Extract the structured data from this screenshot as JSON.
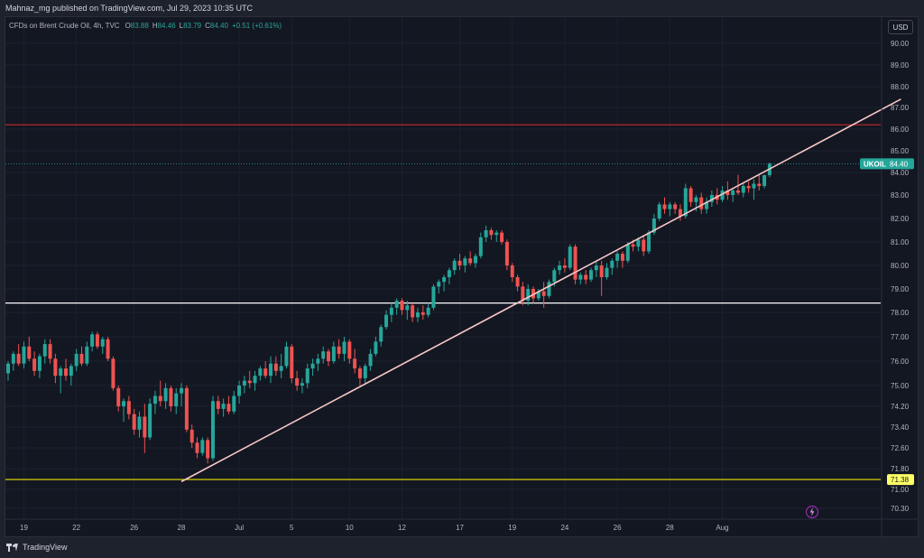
{
  "header": {
    "published": "Mahnaz_mg published on TradingView.com, Jul 29, 2023 10:35 UTC"
  },
  "legend": {
    "symbol": "CFDs on Brent Crude Oil, 4h, TVC",
    "o_label": "O",
    "o_value": "83.88",
    "h_label": "H",
    "h_value": "84.46",
    "l_label": "L",
    "l_value": "83.79",
    "c_label": "C",
    "c_value": "84.40",
    "change": "+0.51 (+0.61%)"
  },
  "currency_button": "USD",
  "ticker_badge": {
    "name": "UKOIL",
    "price": "84.40"
  },
  "support_badge": "71.38",
  "footer": {
    "brand": "TradingView"
  },
  "colors": {
    "up": "#26a69a",
    "down": "#ef5350",
    "background": "#131722",
    "resistance": "#c62828",
    "support": "#ffffff",
    "low_line": "#e6e600",
    "trendline": "#f8c8c8"
  },
  "chart_data": {
    "type": "candlestick",
    "symbol": "UKOIL",
    "interval": "4h",
    "y_ticks": [
      "90.00",
      "89.00",
      "88.00",
      "87.00",
      "86.00",
      "85.00",
      "84.00",
      "83.00",
      "82.00",
      "81.00",
      "80.00",
      "79.00",
      "78.00",
      "77.00",
      "76.00",
      "75.00",
      "74.20",
      "73.40",
      "72.60",
      "71.80",
      "71.00",
      "70.30"
    ],
    "y_tick_values": [
      90.0,
      89.0,
      88.0,
      87.0,
      86.0,
      85.0,
      84.0,
      83.0,
      82.0,
      81.0,
      80.0,
      79.0,
      78.0,
      77.0,
      76.0,
      75.0,
      74.2,
      73.4,
      72.6,
      71.8,
      71.0,
      70.3
    ],
    "x_ticks": [
      "19",
      "22",
      "26",
      "28",
      "Jul",
      "5",
      "10",
      "12",
      "17",
      "19",
      "24",
      "26",
      "28",
      "Aug"
    ],
    "x_tick_index": [
      3,
      13,
      24,
      33,
      44,
      54,
      65,
      75,
      86,
      96,
      106,
      116,
      126,
      136
    ],
    "last_price": 84.4,
    "horizontal_lines": [
      {
        "name": "resistance",
        "price": 86.2,
        "color": "#c62828"
      },
      {
        "name": "support",
        "price": 78.4,
        "color": "#ffffff"
      },
      {
        "name": "low",
        "price": 71.38,
        "color": "#e6e600"
      }
    ],
    "trendline": {
      "start": {
        "index": 33,
        "price": 71.3
      },
      "end": {
        "index": 170,
        "price": 87.4
      }
    },
    "candles": [
      {
        "o": 75.5,
        "h": 76.0,
        "l": 75.2,
        "c": 75.9
      },
      {
        "o": 75.9,
        "h": 76.4,
        "l": 75.6,
        "c": 76.3
      },
      {
        "o": 76.3,
        "h": 76.7,
        "l": 75.8,
        "c": 75.9
      },
      {
        "o": 75.9,
        "h": 76.8,
        "l": 75.7,
        "c": 76.6
      },
      {
        "o": 76.6,
        "h": 77.0,
        "l": 76.0,
        "c": 76.1
      },
      {
        "o": 76.1,
        "h": 76.4,
        "l": 75.4,
        "c": 75.6
      },
      {
        "o": 75.6,
        "h": 76.3,
        "l": 75.3,
        "c": 76.2
      },
      {
        "o": 76.2,
        "h": 76.9,
        "l": 75.9,
        "c": 76.7
      },
      {
        "o": 76.7,
        "h": 76.9,
        "l": 75.9,
        "c": 76.1
      },
      {
        "o": 76.1,
        "h": 76.3,
        "l": 75.1,
        "c": 75.4
      },
      {
        "o": 75.4,
        "h": 75.8,
        "l": 74.7,
        "c": 75.7
      },
      {
        "o": 75.7,
        "h": 76.1,
        "l": 75.2,
        "c": 75.4
      },
      {
        "o": 75.4,
        "h": 75.9,
        "l": 75.0,
        "c": 75.8
      },
      {
        "o": 75.8,
        "h": 76.5,
        "l": 75.6,
        "c": 76.3
      },
      {
        "o": 76.3,
        "h": 76.6,
        "l": 75.8,
        "c": 75.9
      },
      {
        "o": 75.9,
        "h": 76.8,
        "l": 75.8,
        "c": 76.6
      },
      {
        "o": 76.6,
        "h": 77.2,
        "l": 76.4,
        "c": 77.1
      },
      {
        "o": 77.1,
        "h": 77.2,
        "l": 76.5,
        "c": 76.6
      },
      {
        "o": 76.6,
        "h": 77.0,
        "l": 76.3,
        "c": 76.9
      },
      {
        "o": 76.9,
        "h": 77.0,
        "l": 76.0,
        "c": 76.1
      },
      {
        "o": 76.1,
        "h": 76.2,
        "l": 74.8,
        "c": 74.9
      },
      {
        "o": 74.9,
        "h": 75.0,
        "l": 74.0,
        "c": 74.2
      },
      {
        "o": 74.2,
        "h": 74.5,
        "l": 73.6,
        "c": 74.4
      },
      {
        "o": 74.4,
        "h": 74.6,
        "l": 73.7,
        "c": 73.9
      },
      {
        "o": 73.9,
        "h": 74.1,
        "l": 73.1,
        "c": 73.3
      },
      {
        "o": 73.3,
        "h": 74.0,
        "l": 73.0,
        "c": 73.8
      },
      {
        "o": 73.8,
        "h": 74.3,
        "l": 72.4,
        "c": 73.0
      },
      {
        "o": 73.0,
        "h": 74.5,
        "l": 72.9,
        "c": 74.3
      },
      {
        "o": 74.3,
        "h": 74.8,
        "l": 73.9,
        "c": 74.6
      },
      {
        "o": 74.6,
        "h": 75.2,
        "l": 74.2,
        "c": 74.4
      },
      {
        "o": 74.4,
        "h": 75.1,
        "l": 74.1,
        "c": 74.9
      },
      {
        "o": 74.9,
        "h": 75.0,
        "l": 74.0,
        "c": 74.2
      },
      {
        "o": 74.2,
        "h": 74.9,
        "l": 73.9,
        "c": 74.7
      },
      {
        "o": 74.7,
        "h": 75.1,
        "l": 74.2,
        "c": 74.9
      },
      {
        "o": 74.9,
        "h": 75.0,
        "l": 73.2,
        "c": 73.3
      },
      {
        "o": 73.3,
        "h": 73.5,
        "l": 72.6,
        "c": 72.8
      },
      {
        "o": 72.8,
        "h": 73.0,
        "l": 72.2,
        "c": 72.4
      },
      {
        "o": 72.4,
        "h": 73.0,
        "l": 72.3,
        "c": 72.9
      },
      {
        "o": 72.9,
        "h": 73.0,
        "l": 72.0,
        "c": 72.2
      },
      {
        "o": 72.2,
        "h": 74.6,
        "l": 72.1,
        "c": 74.4
      },
      {
        "o": 74.4,
        "h": 74.6,
        "l": 73.9,
        "c": 74.1
      },
      {
        "o": 74.1,
        "h": 74.5,
        "l": 73.8,
        "c": 74.3
      },
      {
        "o": 74.3,
        "h": 74.6,
        "l": 73.9,
        "c": 74.0
      },
      {
        "o": 74.0,
        "h": 74.8,
        "l": 73.9,
        "c": 74.6
      },
      {
        "o": 74.6,
        "h": 75.2,
        "l": 74.3,
        "c": 75.0
      },
      {
        "o": 75.0,
        "h": 75.4,
        "l": 74.7,
        "c": 75.2
      },
      {
        "o": 75.2,
        "h": 75.6,
        "l": 74.9,
        "c": 75.1
      },
      {
        "o": 75.1,
        "h": 75.6,
        "l": 74.8,
        "c": 75.4
      },
      {
        "o": 75.4,
        "h": 75.8,
        "l": 75.2,
        "c": 75.7
      },
      {
        "o": 75.7,
        "h": 76.0,
        "l": 75.3,
        "c": 75.4
      },
      {
        "o": 75.4,
        "h": 76.2,
        "l": 75.1,
        "c": 75.9
      },
      {
        "o": 75.9,
        "h": 76.2,
        "l": 75.4,
        "c": 75.6
      },
      {
        "o": 75.6,
        "h": 76.3,
        "l": 75.3,
        "c": 75.8
      },
      {
        "o": 75.8,
        "h": 76.8,
        "l": 75.7,
        "c": 76.6
      },
      {
        "o": 76.6,
        "h": 76.7,
        "l": 75.1,
        "c": 75.3
      },
      {
        "o": 75.3,
        "h": 75.6,
        "l": 74.8,
        "c": 75.0
      },
      {
        "o": 75.0,
        "h": 75.3,
        "l": 74.7,
        "c": 75.1
      },
      {
        "o": 75.1,
        "h": 75.9,
        "l": 74.9,
        "c": 75.7
      },
      {
        "o": 75.7,
        "h": 76.1,
        "l": 75.4,
        "c": 75.9
      },
      {
        "o": 75.9,
        "h": 76.3,
        "l": 75.6,
        "c": 76.1
      },
      {
        "o": 76.1,
        "h": 76.6,
        "l": 75.9,
        "c": 76.4
      },
      {
        "o": 76.4,
        "h": 76.5,
        "l": 75.8,
        "c": 76.0
      },
      {
        "o": 76.0,
        "h": 76.8,
        "l": 75.9,
        "c": 76.6
      },
      {
        "o": 76.6,
        "h": 76.9,
        "l": 76.1,
        "c": 76.3
      },
      {
        "o": 76.3,
        "h": 77.0,
        "l": 76.0,
        "c": 76.8
      },
      {
        "o": 76.8,
        "h": 76.9,
        "l": 75.9,
        "c": 76.1
      },
      {
        "o": 76.1,
        "h": 76.5,
        "l": 75.5,
        "c": 75.7
      },
      {
        "o": 75.7,
        "h": 75.8,
        "l": 75.0,
        "c": 75.3
      },
      {
        "o": 75.3,
        "h": 75.9,
        "l": 75.1,
        "c": 75.8
      },
      {
        "o": 75.8,
        "h": 76.5,
        "l": 75.6,
        "c": 76.3
      },
      {
        "o": 76.3,
        "h": 77.0,
        "l": 76.2,
        "c": 76.8
      },
      {
        "o": 76.8,
        "h": 77.5,
        "l": 76.6,
        "c": 77.4
      },
      {
        "o": 77.4,
        "h": 78.1,
        "l": 77.3,
        "c": 77.9
      },
      {
        "o": 77.9,
        "h": 78.4,
        "l": 77.6,
        "c": 78.2
      },
      {
        "o": 78.2,
        "h": 78.6,
        "l": 77.9,
        "c": 78.5
      },
      {
        "o": 78.5,
        "h": 78.6,
        "l": 77.9,
        "c": 78.1
      },
      {
        "o": 78.1,
        "h": 78.5,
        "l": 77.7,
        "c": 78.3
      },
      {
        "o": 78.3,
        "h": 78.4,
        "l": 77.6,
        "c": 77.8
      },
      {
        "o": 77.8,
        "h": 78.2,
        "l": 77.6,
        "c": 78.0
      },
      {
        "o": 78.0,
        "h": 78.3,
        "l": 77.7,
        "c": 77.9
      },
      {
        "o": 77.9,
        "h": 78.4,
        "l": 77.8,
        "c": 78.2
      },
      {
        "o": 78.2,
        "h": 79.2,
        "l": 78.1,
        "c": 79.1
      },
      {
        "o": 79.1,
        "h": 79.4,
        "l": 78.8,
        "c": 79.3
      },
      {
        "o": 79.3,
        "h": 79.6,
        "l": 78.9,
        "c": 79.5
      },
      {
        "o": 79.5,
        "h": 79.9,
        "l": 79.2,
        "c": 79.8
      },
      {
        "o": 79.8,
        "h": 80.3,
        "l": 79.6,
        "c": 80.2
      },
      {
        "o": 80.2,
        "h": 80.5,
        "l": 79.8,
        "c": 80.0
      },
      {
        "o": 80.0,
        "h": 80.4,
        "l": 79.7,
        "c": 80.3
      },
      {
        "o": 80.3,
        "h": 80.6,
        "l": 80.0,
        "c": 80.1
      },
      {
        "o": 80.1,
        "h": 80.5,
        "l": 79.9,
        "c": 80.4
      },
      {
        "o": 80.4,
        "h": 81.4,
        "l": 80.3,
        "c": 81.2
      },
      {
        "o": 81.2,
        "h": 81.7,
        "l": 81.0,
        "c": 81.5
      },
      {
        "o": 81.5,
        "h": 81.6,
        "l": 81.1,
        "c": 81.3
      },
      {
        "o": 81.3,
        "h": 81.5,
        "l": 81.0,
        "c": 81.4
      },
      {
        "o": 81.4,
        "h": 81.5,
        "l": 80.9,
        "c": 81.0
      },
      {
        "o": 81.0,
        "h": 81.1,
        "l": 79.8,
        "c": 80.0
      },
      {
        "o": 80.0,
        "h": 80.1,
        "l": 79.3,
        "c": 79.5
      },
      {
        "o": 79.5,
        "h": 79.6,
        "l": 78.9,
        "c": 79.1
      },
      {
        "o": 79.1,
        "h": 79.3,
        "l": 78.3,
        "c": 78.5
      },
      {
        "o": 78.5,
        "h": 79.2,
        "l": 78.3,
        "c": 79.0
      },
      {
        "o": 79.0,
        "h": 79.1,
        "l": 78.4,
        "c": 78.6
      },
      {
        "o": 78.6,
        "h": 79.0,
        "l": 78.5,
        "c": 78.9
      },
      {
        "o": 78.9,
        "h": 79.3,
        "l": 78.2,
        "c": 78.7
      },
      {
        "o": 78.7,
        "h": 79.4,
        "l": 78.6,
        "c": 79.3
      },
      {
        "o": 79.3,
        "h": 79.9,
        "l": 79.1,
        "c": 79.8
      },
      {
        "o": 79.8,
        "h": 80.2,
        "l": 79.6,
        "c": 80.0
      },
      {
        "o": 80.0,
        "h": 80.3,
        "l": 79.7,
        "c": 79.9
      },
      {
        "o": 79.9,
        "h": 80.9,
        "l": 79.8,
        "c": 80.8
      },
      {
        "o": 80.8,
        "h": 80.9,
        "l": 79.2,
        "c": 79.4
      },
      {
        "o": 79.4,
        "h": 79.7,
        "l": 79.2,
        "c": 79.6
      },
      {
        "o": 79.6,
        "h": 79.8,
        "l": 79.2,
        "c": 79.4
      },
      {
        "o": 79.4,
        "h": 79.9,
        "l": 79.3,
        "c": 79.8
      },
      {
        "o": 79.8,
        "h": 80.2,
        "l": 79.5,
        "c": 80.0
      },
      {
        "o": 80.0,
        "h": 80.2,
        "l": 78.7,
        "c": 79.5
      },
      {
        "o": 79.5,
        "h": 80.1,
        "l": 79.4,
        "c": 79.9
      },
      {
        "o": 79.9,
        "h": 80.3,
        "l": 79.6,
        "c": 80.2
      },
      {
        "o": 80.2,
        "h": 80.6,
        "l": 79.9,
        "c": 80.5
      },
      {
        "o": 80.5,
        "h": 80.6,
        "l": 79.9,
        "c": 80.2
      },
      {
        "o": 80.2,
        "h": 81.0,
        "l": 80.1,
        "c": 80.9
      },
      {
        "o": 80.9,
        "h": 81.1,
        "l": 80.6,
        "c": 80.8
      },
      {
        "o": 80.8,
        "h": 81.2,
        "l": 80.6,
        "c": 81.1
      },
      {
        "o": 81.1,
        "h": 81.3,
        "l": 80.4,
        "c": 80.6
      },
      {
        "o": 80.6,
        "h": 81.5,
        "l": 80.5,
        "c": 81.4
      },
      {
        "o": 81.4,
        "h": 82.2,
        "l": 81.3,
        "c": 82.0
      },
      {
        "o": 82.0,
        "h": 82.7,
        "l": 81.9,
        "c": 82.6
      },
      {
        "o": 82.6,
        "h": 82.9,
        "l": 82.2,
        "c": 82.4
      },
      {
        "o": 82.4,
        "h": 82.7,
        "l": 82.1,
        "c": 82.6
      },
      {
        "o": 82.6,
        "h": 82.7,
        "l": 82.2,
        "c": 82.4
      },
      {
        "o": 82.4,
        "h": 82.6,
        "l": 81.9,
        "c": 82.1
      },
      {
        "o": 82.1,
        "h": 83.5,
        "l": 82.0,
        "c": 83.3
      },
      {
        "o": 83.3,
        "h": 83.4,
        "l": 82.5,
        "c": 82.7
      },
      {
        "o": 82.7,
        "h": 83.0,
        "l": 82.3,
        "c": 82.9
      },
      {
        "o": 82.9,
        "h": 83.1,
        "l": 82.2,
        "c": 82.4
      },
      {
        "o": 82.4,
        "h": 82.9,
        "l": 82.2,
        "c": 82.7
      },
      {
        "o": 82.7,
        "h": 83.2,
        "l": 82.5,
        "c": 83.0
      },
      {
        "o": 83.0,
        "h": 83.3,
        "l": 82.6,
        "c": 82.8
      },
      {
        "o": 82.8,
        "h": 83.4,
        "l": 82.7,
        "c": 83.2
      },
      {
        "o": 83.2,
        "h": 83.6,
        "l": 82.8,
        "c": 83.0
      },
      {
        "o": 83.0,
        "h": 83.3,
        "l": 82.7,
        "c": 83.2
      },
      {
        "o": 83.2,
        "h": 83.9,
        "l": 83.0,
        "c": 83.1
      },
      {
        "o": 83.1,
        "h": 83.5,
        "l": 82.9,
        "c": 83.4
      },
      {
        "o": 83.4,
        "h": 83.6,
        "l": 83.1,
        "c": 83.3
      },
      {
        "o": 83.3,
        "h": 83.7,
        "l": 82.8,
        "c": 83.5
      },
      {
        "o": 83.5,
        "h": 83.9,
        "l": 83.2,
        "c": 83.4
      },
      {
        "o": 83.4,
        "h": 83.9,
        "l": 83.3,
        "c": 83.88
      },
      {
        "o": 83.88,
        "h": 84.46,
        "l": 83.79,
        "c": 84.4
      }
    ]
  }
}
